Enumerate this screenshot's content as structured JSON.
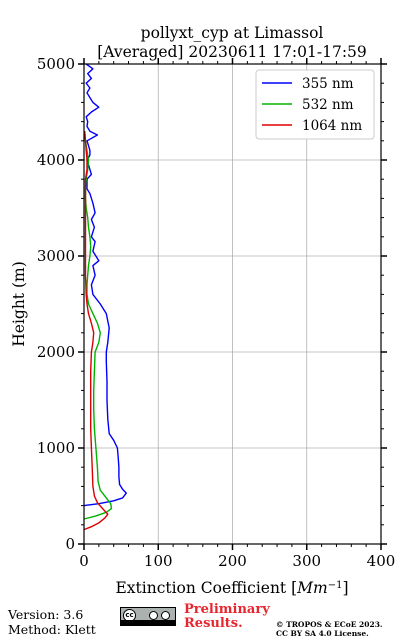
{
  "chart_data": {
    "type": "line",
    "title": "pollyxt_cyp at Limassol",
    "subtitle": "[Averaged] 20230611 17:01-17:59",
    "xlabel": "Extinction Coefficient [Mm⁻¹]",
    "xlabel_main": "Extinction Coefficient [",
    "xlabel_unit": "Mm",
    "xlabel_sup": "−1",
    "xlabel_end": "]",
    "ylabel": "Height (m)",
    "xlim": [
      0,
      400
    ],
    "ylim": [
      0,
      5000
    ],
    "xticks": [
      0,
      100,
      200,
      300,
      400
    ],
    "yticks": [
      0,
      1000,
      2000,
      3000,
      4000,
      5000
    ],
    "grid": true,
    "legend_position": "top-right",
    "series": [
      {
        "name": "355 nm",
        "color": "#0000ff",
        "points": [
          [
            0,
            400
          ],
          [
            20,
            420
          ],
          [
            40,
            450
          ],
          [
            52,
            480
          ],
          [
            57,
            530
          ],
          [
            52,
            570
          ],
          [
            48,
            620
          ],
          [
            47,
            700
          ],
          [
            47,
            800
          ],
          [
            46,
            900
          ],
          [
            45,
            1000
          ],
          [
            40,
            1080
          ],
          [
            34,
            1150
          ],
          [
            32,
            1300
          ],
          [
            31,
            1500
          ],
          [
            31,
            1700
          ],
          [
            30,
            1900
          ],
          [
            30,
            2000
          ],
          [
            32,
            2100
          ],
          [
            34,
            2250
          ],
          [
            30,
            2400
          ],
          [
            22,
            2500
          ],
          [
            12,
            2600
          ],
          [
            10,
            2700
          ],
          [
            15,
            2800
          ],
          [
            12,
            2900
          ],
          [
            20,
            2950
          ],
          [
            12,
            3050
          ],
          [
            15,
            3150
          ],
          [
            10,
            3200
          ],
          [
            14,
            3300
          ],
          [
            10,
            3380
          ],
          [
            15,
            3450
          ],
          [
            12,
            3550
          ],
          [
            8,
            3650
          ],
          [
            4,
            3700
          ],
          [
            4,
            3800
          ],
          [
            10,
            3850
          ],
          [
            6,
            3950
          ],
          [
            4,
            4000
          ],
          [
            8,
            4050
          ],
          [
            8,
            4100
          ],
          [
            6,
            4150
          ],
          [
            4,
            4200
          ],
          [
            18,
            4260
          ],
          [
            8,
            4300
          ],
          [
            4,
            4350
          ],
          [
            5,
            4400
          ],
          [
            3,
            4450
          ],
          [
            10,
            4500
          ],
          [
            20,
            4550
          ],
          [
            12,
            4600
          ],
          [
            8,
            4650
          ],
          [
            4,
            4700
          ],
          [
            8,
            4750
          ],
          [
            3,
            4800
          ],
          [
            10,
            4850
          ],
          [
            5,
            4900
          ],
          [
            12,
            4950
          ],
          [
            3,
            5000
          ]
        ]
      },
      {
        "name": "532 nm",
        "color": "#00b300",
        "points": [
          [
            0,
            260
          ],
          [
            15,
            290
          ],
          [
            30,
            330
          ],
          [
            37,
            370
          ],
          [
            36,
            420
          ],
          [
            30,
            480
          ],
          [
            22,
            560
          ],
          [
            19,
            650
          ],
          [
            18,
            800
          ],
          [
            16,
            1000
          ],
          [
            14,
            1200
          ],
          [
            13,
            1400
          ],
          [
            13,
            1600
          ],
          [
            14,
            1800
          ],
          [
            15,
            2000
          ],
          [
            20,
            2100
          ],
          [
            22,
            2200
          ],
          [
            18,
            2300
          ],
          [
            12,
            2400
          ],
          [
            6,
            2500
          ],
          [
            4,
            2600
          ],
          [
            4,
            2700
          ],
          [
            5,
            2800
          ],
          [
            6,
            2900
          ],
          [
            8,
            3000
          ],
          [
            9,
            3100
          ],
          [
            8,
            3200
          ],
          [
            6,
            3300
          ],
          [
            5,
            3400
          ],
          [
            3,
            3500
          ],
          [
            2,
            3600
          ],
          [
            2,
            3700
          ],
          [
            3,
            3800
          ],
          [
            5,
            3900
          ],
          [
            6,
            4000
          ],
          [
            5,
            4050
          ],
          [
            4,
            4100
          ],
          [
            2,
            4200
          ],
          [
            1,
            4300
          ]
        ]
      },
      {
        "name": "1064 nm",
        "color": "#dd0000",
        "points": [
          [
            0,
            150
          ],
          [
            10,
            180
          ],
          [
            20,
            220
          ],
          [
            28,
            270
          ],
          [
            32,
            310
          ],
          [
            26,
            360
          ],
          [
            18,
            430
          ],
          [
            14,
            500
          ],
          [
            12,
            600
          ],
          [
            11,
            800
          ],
          [
            10,
            1000
          ],
          [
            9,
            1200
          ],
          [
            9,
            1500
          ],
          [
            9,
            1800
          ],
          [
            10,
            2000
          ],
          [
            12,
            2100
          ],
          [
            13,
            2200
          ],
          [
            10,
            2300
          ],
          [
            6,
            2400
          ],
          [
            4,
            2500
          ],
          [
            3,
            2600
          ],
          [
            2,
            2800
          ],
          [
            2,
            3000
          ],
          [
            2,
            3200
          ],
          [
            2,
            3400
          ],
          [
            2,
            3600
          ],
          [
            2,
            3800
          ],
          [
            4,
            3900
          ],
          [
            4,
            4000
          ],
          [
            3,
            4100
          ],
          [
            2,
            4200
          ],
          [
            1,
            4300
          ]
        ]
      }
    ]
  },
  "footer": {
    "version": "Version: 3.6",
    "method": "Method: Klett",
    "preliminary_line1": "Preliminary",
    "preliminary_line2": "Results.",
    "copyright_line1": "© TROPOS & ECoE 2023.",
    "copyright_line2": "CC BY SA 4.0 License.",
    "license_badge": "cc BY SA"
  }
}
